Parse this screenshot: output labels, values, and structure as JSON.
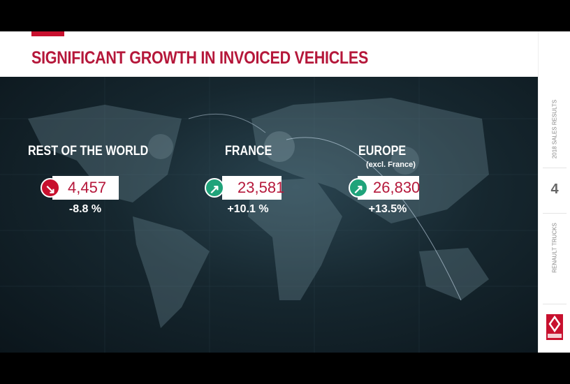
{
  "title": "SIGNIFICANT GROWTH IN INVOICED VEHICLES",
  "colors": {
    "accent": "#c8102e",
    "up": "#1fa37a",
    "down": "#c8102e"
  },
  "regions": [
    {
      "label": "REST OF THE WORLD",
      "value": "4,457",
      "change": "-8.8 %",
      "trend": "down",
      "icon": "arrow-down-right-icon"
    },
    {
      "label": "FRANCE",
      "value": "23,581",
      "change": "+10.1 %",
      "trend": "up",
      "icon": "arrow-up-right-icon"
    },
    {
      "label": "EUROPE",
      "sublabel": "(excl. France)",
      "value": "26,830",
      "change": "+13.5%",
      "trend": "up",
      "icon": "arrow-up-right-icon"
    }
  ],
  "sidebar": {
    "section": "2018 SALES RESULTS",
    "page": "4",
    "brand": "RENAULT TRUCKS",
    "logo_text": "RENAULT TRUCKS"
  }
}
